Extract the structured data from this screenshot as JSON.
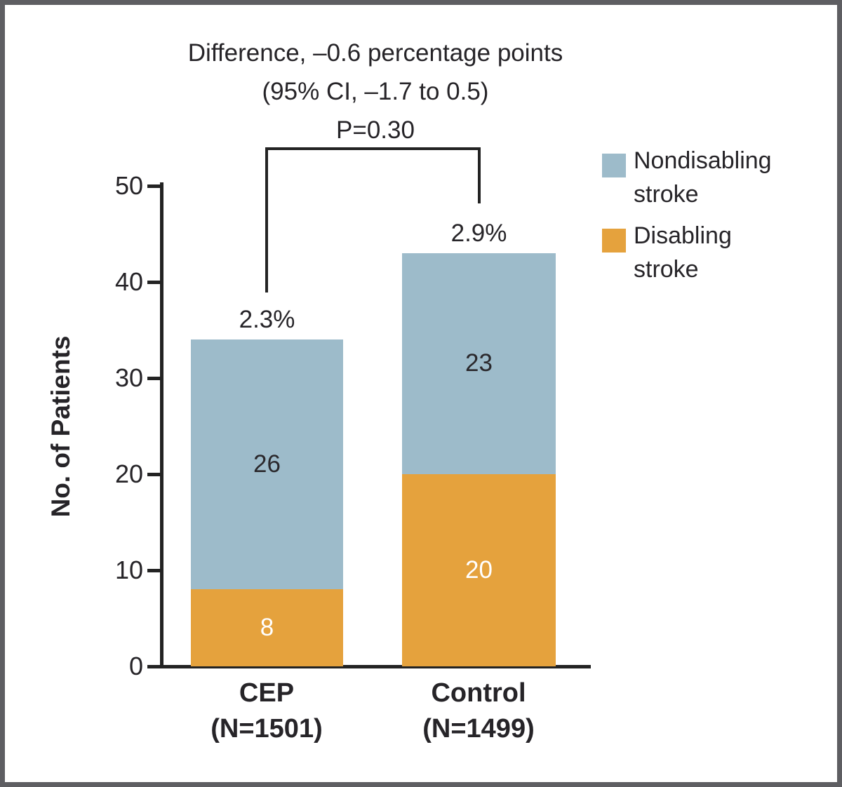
{
  "figure": {
    "background": "#ffffff",
    "border_color": "#5e5e62"
  },
  "annotation": {
    "line1": "Difference, –0.6 percentage points",
    "line2": "(95% CI, –1.7 to 0.5)",
    "line3": "P=0.30"
  },
  "legend": {
    "position": "top-right",
    "items": [
      {
        "key": "nondisabling-stroke",
        "label_line1": "Nondisabling",
        "label_line2": "stroke",
        "color": "#9dbbca"
      },
      {
        "key": "disabling-stroke",
        "label_line1": "Disabling",
        "label_line2": "stroke",
        "color": "#e5a23d"
      }
    ]
  },
  "y_axis": {
    "label": "No. of Patients",
    "min": 0,
    "max": 50
  },
  "x_axis": {
    "labels": [
      {
        "title": "CEP",
        "sub": "(N=1501)"
      },
      {
        "title": "Control",
        "sub": "(N=1499)"
      }
    ]
  },
  "chart_data": {
    "type": "bar",
    "stacked": true,
    "title": "Difference, –0.6 percentage points (95% CI, –1.7 to 0.5), P=0.30",
    "xlabel": "",
    "ylabel": "No. of Patients",
    "ylim": [
      0,
      50
    ],
    "yticks": [
      0,
      10,
      20,
      30,
      40,
      50
    ],
    "grid": false,
    "legend_position": "top-right",
    "categories": [
      "CEP (N=1501)",
      "Control (N=1499)"
    ],
    "series": [
      {
        "name": "Disabling stroke",
        "color": "#e5a23d",
        "label_color": "#ffffff",
        "values": [
          8,
          20
        ]
      },
      {
        "name": "Nondisabling stroke",
        "color": "#9dbbca",
        "label_color": "#2a282c",
        "values": [
          26,
          23
        ]
      }
    ],
    "totals": [
      34,
      43
    ],
    "total_percent_labels": [
      "2.3%",
      "2.9%"
    ],
    "comparison": {
      "difference": "–0.6 percentage points",
      "ci_95": "–1.7 to 0.5",
      "p_value": "P=0.30"
    }
  }
}
